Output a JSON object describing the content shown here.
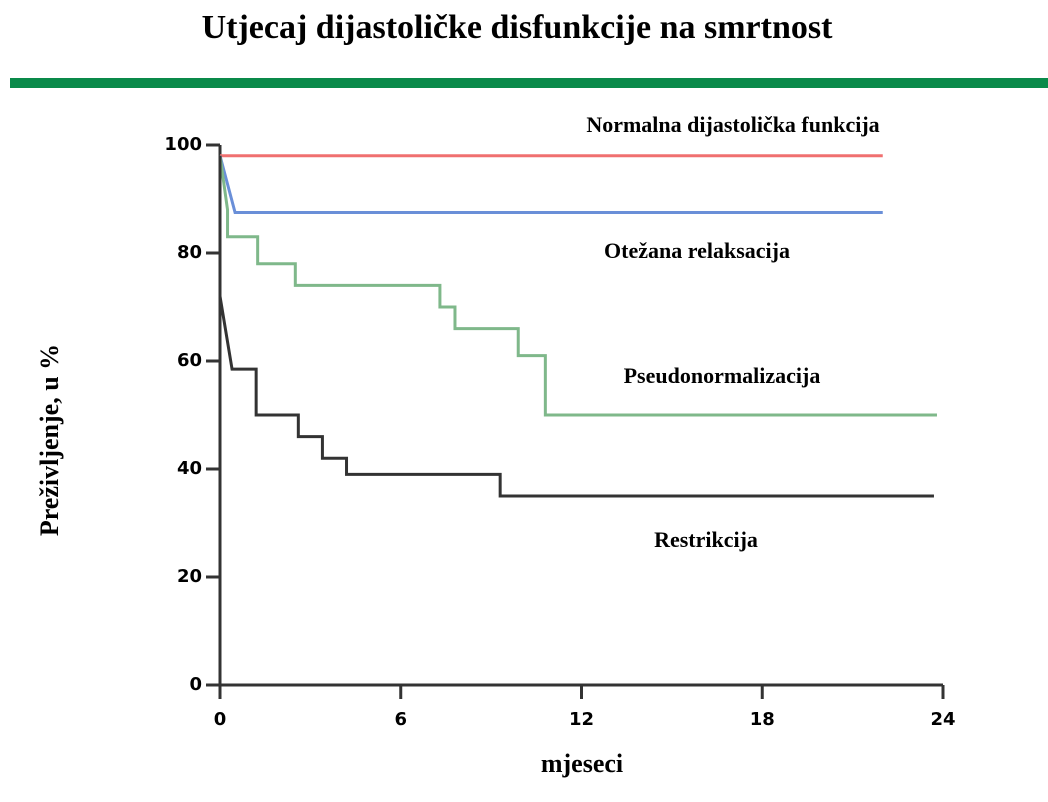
{
  "chart_data": {
    "type": "line",
    "title": "Utjecaj dijastoličke disfunkcije na smrtnost",
    "x_label": "mjeseci",
    "y_label": "Preživljenje, u %",
    "xlim": [
      0,
      24
    ],
    "xticks": [
      0,
      6,
      12,
      18,
      24
    ],
    "ylim": [
      0,
      100
    ],
    "yticks": [
      0,
      20,
      40,
      60,
      80,
      100
    ],
    "series": [
      {
        "name": "Normalna dijastolička funkcija",
        "color": "#f07070",
        "x": [
          0,
          22
        ],
        "values": [
          98,
          98
        ]
      },
      {
        "name": "Otežana relaksacija",
        "color": "#6a8fd8",
        "x": [
          0,
          0.5,
          22
        ],
        "values": [
          98,
          87.5,
          87.5
        ]
      },
      {
        "name": "Pseudonormalizacija",
        "color": "#7fb88a",
        "x": [
          0,
          0.25,
          0.25,
          1.25,
          1.25,
          2.5,
          2.5,
          7.3,
          7.3,
          7.8,
          7.8,
          9.9,
          9.9,
          10.8,
          10.8,
          23.8
        ],
        "values": [
          98,
          88,
          83,
          83,
          78,
          78,
          74,
          74,
          70,
          70,
          66,
          66,
          61,
          61,
          50,
          50
        ]
      },
      {
        "name": "Restrikcija",
        "color": "#333333",
        "x": [
          0,
          0,
          0.4,
          1.2,
          1.2,
          2.6,
          2.6,
          3.4,
          3.4,
          4.2,
          4.2,
          9.3,
          9.3,
          23.7
        ],
        "values": [
          98,
          72,
          58.5,
          58.5,
          50,
          50,
          46,
          46,
          42,
          42,
          39,
          39,
          35,
          35
        ]
      }
    ]
  }
}
